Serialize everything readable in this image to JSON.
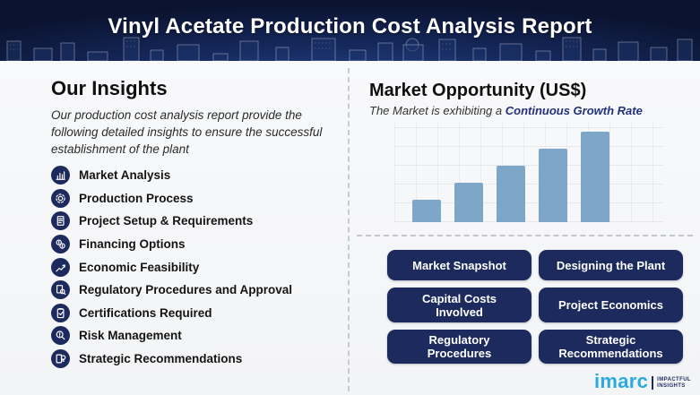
{
  "header": {
    "title": "Vinyl Acetate Production Cost Analysis Report"
  },
  "insights": {
    "heading": "Our Insights",
    "description": "Our production cost analysis report provide the following detailed insights to ensure the successful establishment of the plant",
    "items": [
      {
        "label": "Market Analysis",
        "icon": "market-analysis-icon"
      },
      {
        "label": "Production Process",
        "icon": "production-process-icon"
      },
      {
        "label": "Project Setup & Requirements",
        "icon": "project-setup-icon"
      },
      {
        "label": "Financing Options",
        "icon": "financing-options-icon"
      },
      {
        "label": "Economic Feasibility",
        "icon": "economic-feasibility-icon"
      },
      {
        "label": "Regulatory Procedures and Approval",
        "icon": "regulatory-procedures-icon"
      },
      {
        "label": "Certifications Required",
        "icon": "certifications-icon"
      },
      {
        "label": "Risk Management",
        "icon": "risk-management-icon"
      },
      {
        "label": "Strategic Recommendations",
        "icon": "strategic-recommendations-icon"
      }
    ]
  },
  "market": {
    "heading": "Market Opportunity (US$)",
    "subtitle_prefix": "The Market is exhibiting a ",
    "subtitle_accent": "Continuous Growth Rate",
    "buttons": [
      {
        "label": "Market Snapshot"
      },
      {
        "label": "Designing the Plant"
      },
      {
        "label": "Capital Costs Involved"
      },
      {
        "label": "Project Economics"
      },
      {
        "label": "Regulatory Procedures"
      },
      {
        "label": "Strategic Recommendations"
      }
    ]
  },
  "chart_data": {
    "type": "bar",
    "title": "Market Opportunity (US$)",
    "x": [
      1,
      2,
      3,
      4,
      5
    ],
    "values": [
      25,
      44,
      63,
      82,
      101
    ],
    "xlabel": "",
    "ylabel": "",
    "ylim": [
      0,
      114
    ],
    "tick_labels_visible": false,
    "grid": true,
    "legend": false,
    "bar_color": "#7ea6c8",
    "annotation": "five ascending bars indicating continuous growth"
  },
  "logo": {
    "brand": "imarc",
    "tagline_line1": "IMPACTFUL",
    "tagline_line2": "INSIGHTS"
  },
  "colors": {
    "navy": "#1c2a5e",
    "accent_blue": "#20327e",
    "bar_blue": "#7ea6c8",
    "logo_blue": "#29abe2",
    "header_dark": "#0a132f"
  }
}
